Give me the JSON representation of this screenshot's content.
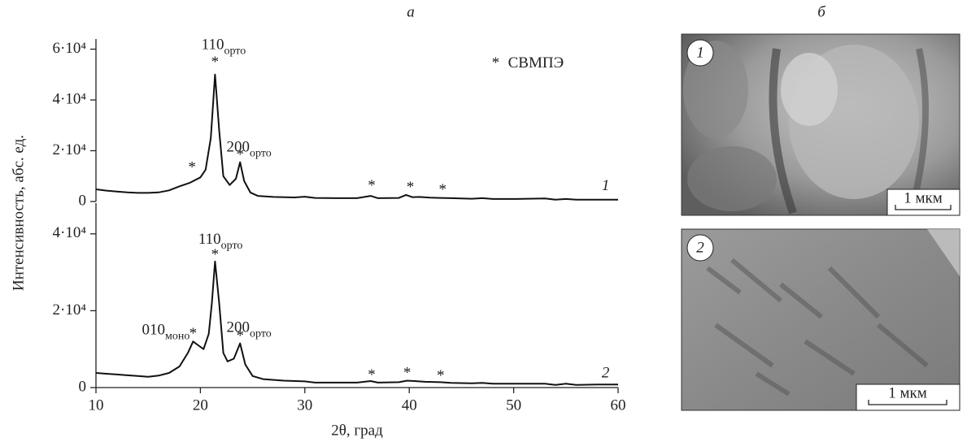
{
  "panel_labels": [
    "а",
    "б"
  ],
  "chart_data": [
    {
      "type": "line",
      "ylabel": "Интенсивность, абс. ед.",
      "x": [
        10,
        11,
        12,
        13,
        14,
        15,
        16,
        17,
        18,
        19,
        20,
        20.5,
        21,
        21.4,
        21.8,
        22.2,
        22.8,
        23.4,
        23.8,
        24.2,
        24.8,
        25.5,
        27,
        29,
        30,
        31,
        33,
        35,
        36.3,
        37,
        39,
        39.7,
        40.3,
        41,
        42,
        43,
        44,
        46,
        47,
        48,
        50,
        53,
        54,
        55,
        56,
        58,
        60
      ],
      "values": [
        4800,
        4300,
        3900,
        3600,
        3400,
        3400,
        3600,
        4400,
        6000,
        7400,
        9500,
        12500,
        25000,
        50000,
        28000,
        10000,
        6500,
        9000,
        15500,
        8000,
        3500,
        2200,
        1800,
        1600,
        1900,
        1400,
        1300,
        1300,
        2200,
        1300,
        1400,
        2600,
        1700,
        1800,
        1500,
        1400,
        1300,
        1100,
        1300,
        1000,
        1000,
        1200,
        700,
        1000,
        700,
        700,
        700
      ],
      "color": "#111",
      "xlim": [
        10,
        60
      ],
      "ylim": [
        0,
        64000
      ],
      "yticks": [
        0,
        {
          "value": 20000,
          "label": "2·10⁴"
        },
        {
          "value": 40000,
          "label": "4·10⁴"
        },
        {
          "value": 60000,
          "label": "6·10⁴"
        }
      ],
      "curve_label": {
        "text": "1",
        "x": 58.8,
        "y": 5800
      },
      "legend": {
        "marker": "*",
        "text": "СВМПЭ",
        "x": 47.9,
        "y": 54200
      },
      "peak_marker": "*",
      "peaks": [
        {
          "x": 19.2,
          "y": 13000
        },
        {
          "x": 21.4,
          "y": 54500
        },
        {
          "x": 23.8,
          "y": 18000
        },
        {
          "x": 36.4,
          "y": 5800
        },
        {
          "x": 40.1,
          "y": 5200
        },
        {
          "x": 43.2,
          "y": 4200
        }
      ],
      "annotations": [
        {
          "text": "110",
          "sub": "орто",
          "x": 20.1,
          "y": 61300
        },
        {
          "text": "200",
          "sub": "орто",
          "x": 22.5,
          "y": 21000
        }
      ]
    },
    {
      "type": "line",
      "xlabel": "2θ, град",
      "x": [
        10,
        11,
        12,
        13,
        14,
        15,
        16,
        17,
        18,
        18.8,
        19.3,
        19.8,
        20.3,
        20.8,
        21.1,
        21.4,
        21.8,
        22.2,
        22.6,
        23.2,
        23.8,
        24.3,
        25,
        26,
        28,
        30,
        31,
        33,
        35,
        36.3,
        37,
        39,
        39.8,
        40.5,
        41.5,
        43,
        44,
        46,
        47,
        48,
        50,
        53,
        54,
        55,
        56,
        58,
        60
      ],
      "values": [
        3800,
        3600,
        3400,
        3200,
        3000,
        2800,
        3100,
        3800,
        5500,
        9000,
        12000,
        11000,
        10000,
        14000,
        22000,
        32800,
        22000,
        9000,
        6800,
        7500,
        11500,
        6000,
        3000,
        2200,
        1800,
        1600,
        1300,
        1300,
        1300,
        1700,
        1300,
        1400,
        1800,
        1700,
        1500,
        1400,
        1200,
        1100,
        1200,
        1000,
        1000,
        1000,
        700,
        1000,
        700,
        800,
        800
      ],
      "color": "#111",
      "xlim": [
        10,
        60
      ],
      "ylim": [
        0,
        48000
      ],
      "xticks": [
        10,
        20,
        30,
        40,
        50,
        60
      ],
      "yticks": [
        0,
        {
          "value": 20000,
          "label": "2·10⁴"
        },
        {
          "value": 40000,
          "label": "4·10⁴"
        }
      ],
      "curve_label": {
        "text": "2",
        "x": 58.8,
        "y": 3600
      },
      "peak_marker": "*",
      "peaks": [
        {
          "x": 19.3,
          "y": 13800
        },
        {
          "x": 21.4,
          "y": 34300
        },
        {
          "x": 23.8,
          "y": 13200
        },
        {
          "x": 36.4,
          "y": 3000
        },
        {
          "x": 39.8,
          "y": 3600
        },
        {
          "x": 43,
          "y": 2800
        }
      ],
      "annotations": [
        {
          "text": "110",
          "sub": "орто",
          "x": 19.8,
          "y": 38300
        },
        {
          "text": "010",
          "sub": "моно",
          "x": 14.4,
          "y": 14700
        },
        {
          "text": "200",
          "sub": "орто",
          "x": 22.5,
          "y": 15300
        }
      ]
    }
  ],
  "micrographs": [
    {
      "label": "1",
      "scale_bar": "1 мкм"
    },
    {
      "label": "2",
      "scale_bar": "1 мкм"
    }
  ]
}
